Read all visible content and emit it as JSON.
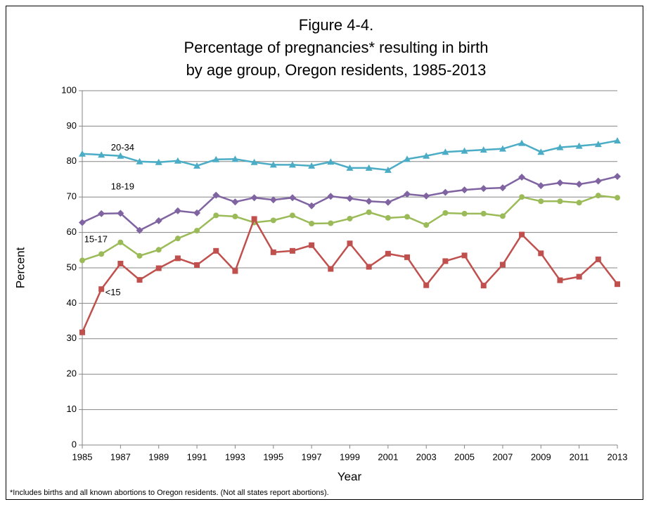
{
  "chart_data": {
    "type": "line",
    "title": "Figure 4-4.",
    "subtitle": [
      "Percentage of pregnancies* resulting in birth",
      "by age group, Oregon residents, 1985-2013"
    ],
    "x_label": "Year",
    "y_label": "Percent",
    "footnote": "*Includes births and all known abortions to Oregon residents.  (Not all states report abortions).",
    "x": [
      1985,
      1986,
      1987,
      1988,
      1989,
      1990,
      1991,
      1992,
      1993,
      1994,
      1995,
      1996,
      1997,
      1998,
      1999,
      2000,
      2001,
      2002,
      2003,
      2004,
      2005,
      2006,
      2007,
      2008,
      2009,
      2010,
      2011,
      2012,
      2013
    ],
    "series": [
      {
        "name": "20-34",
        "color": "#4bacc6",
        "marker": "triangle",
        "values": [
          82.2,
          81.9,
          81.6,
          80.0,
          79.8,
          80.2,
          78.8,
          80.6,
          80.7,
          79.8,
          79.1,
          79.1,
          78.8,
          79.9,
          78.2,
          78.2,
          77.6,
          80.7,
          81.6,
          82.7,
          83.0,
          83.3,
          83.6,
          85.2,
          82.7,
          84.0,
          84.4,
          84.9,
          85.9
        ]
      },
      {
        "name": "18-19",
        "color": "#8064a2",
        "marker": "diamond",
        "values": [
          62.8,
          65.3,
          65.4,
          60.6,
          63.3,
          66.1,
          65.5,
          70.5,
          68.6,
          69.8,
          69.2,
          69.8,
          67.5,
          70.2,
          69.6,
          68.8,
          68.5,
          70.8,
          70.3,
          71.3,
          72.0,
          72.4,
          72.6,
          75.6,
          73.2,
          74.0,
          73.6,
          74.5,
          75.8
        ]
      },
      {
        "name": "15-17",
        "color": "#9bbb59",
        "marker": "circle",
        "values": [
          52.1,
          53.9,
          57.2,
          53.4,
          55.1,
          58.3,
          60.5,
          64.8,
          64.5,
          62.8,
          63.4,
          64.8,
          62.5,
          62.6,
          63.9,
          65.7,
          64.1,
          64.4,
          62.1,
          65.5,
          65.3,
          65.3,
          64.6,
          70.0,
          68.8,
          68.8,
          68.4,
          70.4,
          69.8
        ]
      },
      {
        "name": "<15",
        "color": "#c0504d",
        "marker": "square",
        "values": [
          31.8,
          44.0,
          51.2,
          46.6,
          49.9,
          52.7,
          50.8,
          54.8,
          49.1,
          63.8,
          54.4,
          54.8,
          56.4,
          49.7,
          56.9,
          50.3,
          54.0,
          53.0,
          45.1,
          51.9,
          53.5,
          45.0,
          50.9,
          59.4,
          54.1,
          46.5,
          47.5,
          52.4,
          45.4
        ]
      }
    ],
    "xlim": [
      1985,
      2013
    ],
    "xticks": [
      1985,
      1987,
      1989,
      1991,
      1993,
      1995,
      1997,
      1999,
      2001,
      2003,
      2005,
      2007,
      2009,
      2011,
      2013
    ],
    "ylim": [
      0,
      100
    ],
    "yticks": [
      0,
      10,
      20,
      30,
      40,
      50,
      60,
      70,
      80,
      90,
      100
    ],
    "grid": true
  }
}
